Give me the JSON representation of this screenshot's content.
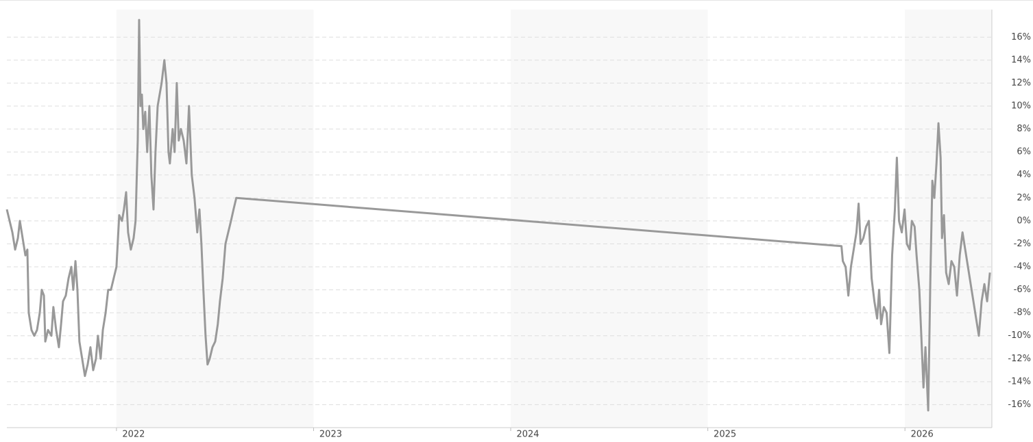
{
  "chart_data": {
    "type": "line",
    "x": [
      2021.444,
      2021.458,
      2021.472,
      2021.486,
      2021.5,
      2021.51,
      2021.524,
      2021.538,
      2021.548,
      2021.555,
      2021.569,
      2021.583,
      2021.597,
      2021.611,
      2021.621,
      2021.632,
      2021.639,
      2021.653,
      2021.67,
      2021.68,
      2021.694,
      2021.708,
      2021.719,
      2021.729,
      2021.743,
      2021.757,
      2021.771,
      2021.781,
      2021.792,
      2021.802,
      2021.812,
      2021.826,
      2021.84,
      2021.854,
      2021.868,
      2021.882,
      2021.896,
      2021.906,
      2021.92,
      2021.931,
      2021.945,
      2021.958,
      2021.972,
      2021.986,
      2022.0,
      2022.014,
      2022.028,
      2022.038,
      2022.049,
      2022.059,
      2022.073,
      2022.087,
      2022.097,
      2022.108,
      2022.115,
      2022.122,
      2022.129,
      2022.136,
      2022.146,
      2022.156,
      2022.167,
      2022.177,
      2022.188,
      2022.198,
      2022.209,
      2022.219,
      2022.229,
      2022.243,
      2022.254,
      2022.264,
      2022.271,
      2022.285,
      2022.295,
      2022.306,
      2022.316,
      2022.327,
      2022.341,
      2022.355,
      2022.368,
      2022.382,
      2022.396,
      2022.41,
      2022.421,
      2022.431,
      2022.441,
      2022.452,
      2022.462,
      2022.473,
      2022.487,
      2022.501,
      2022.514,
      2022.525,
      2022.539,
      2022.553,
      2022.567,
      2022.581,
      2022.594,
      2022.608,
      2025.678,
      2025.685,
      2025.699,
      2025.713,
      2025.726,
      2025.74,
      2025.754,
      2025.765,
      2025.775,
      2025.789,
      2025.803,
      2025.817,
      2025.831,
      2025.845,
      2025.859,
      2025.869,
      2025.879,
      2025.893,
      2025.907,
      2025.921,
      2025.935,
      2025.949,
      2025.959,
      2025.97,
      2025.984,
      2025.998,
      2026.01,
      2026.024,
      2026.035,
      2026.049,
      2026.059,
      2026.073,
      2026.083,
      2026.094,
      2026.104,
      2026.118,
      2026.129,
      2026.139,
      2026.149,
      2026.16,
      2026.17,
      2026.181,
      2026.188,
      2026.198,
      2026.209,
      2026.222,
      2026.236,
      2026.25,
      2026.264,
      2026.278,
      2026.292,
      2026.375,
      2026.389,
      2026.403,
      2026.417,
      2026.431
    ],
    "series": [
      {
        "color": "#999999",
        "values": [
          1,
          0,
          -1,
          -2.5,
          -1.5,
          0,
          -1.5,
          -3,
          -2.5,
          -8,
          -9.5,
          -10,
          -9.5,
          -8,
          -6,
          -6.5,
          -10.5,
          -9.5,
          -10,
          -7.5,
          -9.5,
          -11,
          -9,
          -7,
          -6.5,
          -5,
          -4,
          -6,
          -3.5,
          -6,
          -10.5,
          -12,
          -13.5,
          -12.5,
          -11,
          -13,
          -12,
          -10,
          -12,
          -9.5,
          -8,
          -6,
          -6,
          -5,
          -4,
          0.5,
          0,
          1,
          2.5,
          -1,
          -2.5,
          -1.5,
          0,
          7,
          17.5,
          10,
          11,
          8,
          9.5,
          6,
          10,
          4,
          1,
          6,
          10,
          11,
          12,
          14,
          12,
          6,
          5,
          8,
          6,
          12,
          7,
          8,
          7,
          5,
          10,
          4,
          2,
          -1,
          1,
          -2,
          -6,
          -10,
          -12.5,
          -12,
          -11,
          -10.5,
          -9,
          -7,
          -5,
          -2,
          -1,
          0,
          1,
          2,
          -2.2,
          -3.5,
          -4,
          -6.5,
          -4,
          -2.5,
          -1,
          1.5,
          -2,
          -1.5,
          -0.5,
          0,
          -5,
          -7,
          -8.5,
          -6,
          -9,
          -7.5,
          -8,
          -11.5,
          -3,
          1,
          5.5,
          0,
          -1,
          1,
          -2,
          -2.5,
          0,
          -0.5,
          -3,
          -6,
          -10,
          -14.5,
          -11,
          -16.5,
          -5,
          3.5,
          2,
          5,
          8.5,
          5.5,
          -1.5,
          0.5,
          -4.5,
          -5.5,
          -3.5,
          -4,
          -6.5,
          -3,
          -1,
          -10,
          -7,
          -5.5,
          -7,
          -4.5
        ]
      }
    ],
    "xlim": [
      2021.444,
      2026.441
    ],
    "xticks": [
      2022,
      2023,
      2024,
      2025,
      2026
    ],
    "ylim": [
      -18,
      18.4
    ],
    "yticks": [
      {
        "value": -16,
        "label": "-16%"
      },
      {
        "value": -14,
        "label": "-14%"
      },
      {
        "value": -12,
        "label": "-12%"
      },
      {
        "value": -10,
        "label": "-10%"
      },
      {
        "value": -8,
        "label": "-8%"
      },
      {
        "value": -6,
        "label": "-6%"
      },
      {
        "value": -4,
        "label": "-4%"
      },
      {
        "value": -2,
        "label": "-2%"
      },
      {
        "value": 0,
        "label": "0%"
      },
      {
        "value": 2,
        "label": "2%"
      },
      {
        "value": 4,
        "label": "4%"
      },
      {
        "value": 6,
        "label": "6%"
      },
      {
        "value": 8,
        "label": "8%"
      },
      {
        "value": 10,
        "label": "10%"
      },
      {
        "value": 12,
        "label": "12%"
      },
      {
        "value": 14,
        "label": "14%"
      },
      {
        "value": 16,
        "label": "16%"
      }
    ],
    "grid": true
  }
}
